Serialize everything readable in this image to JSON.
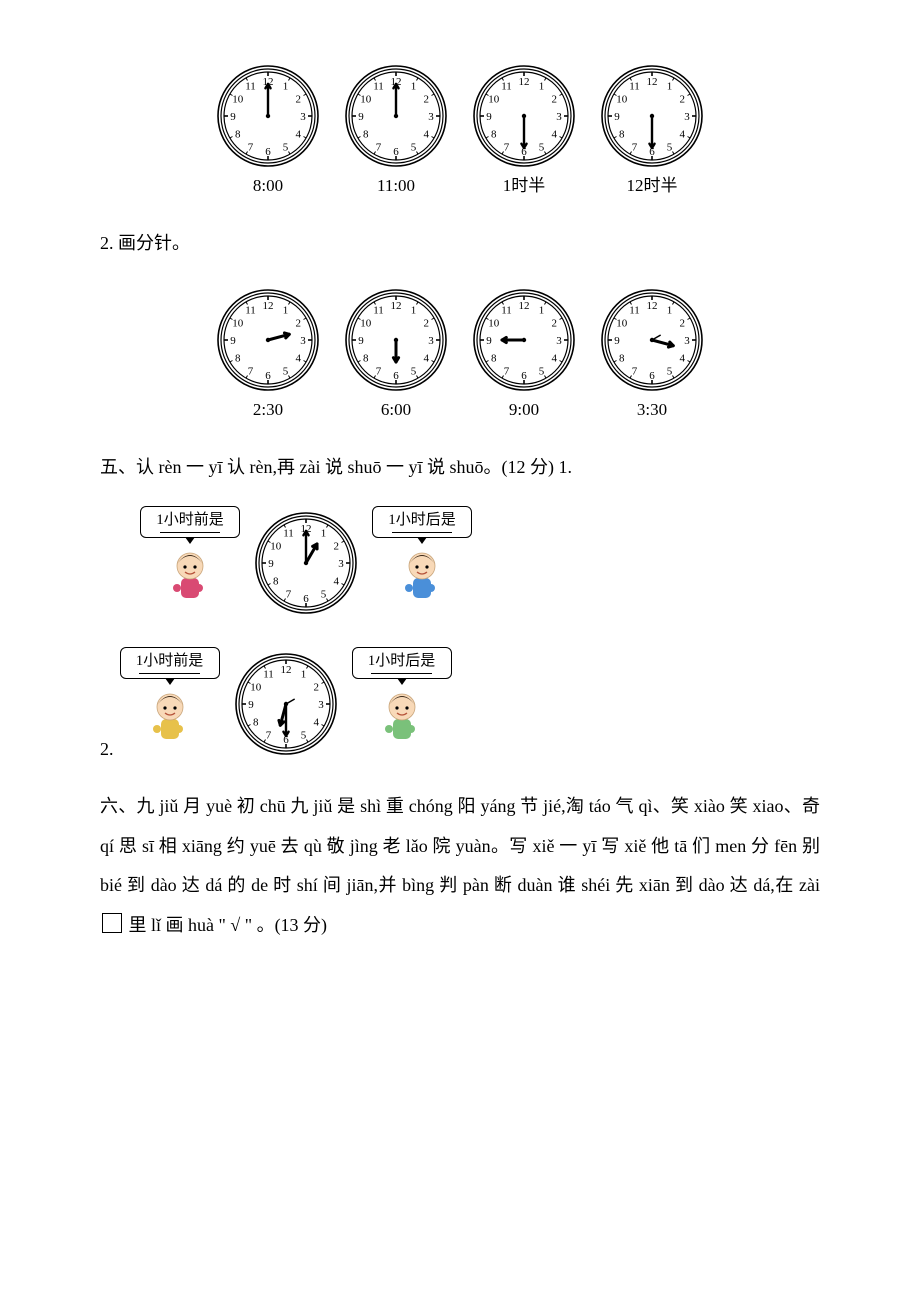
{
  "colors": {
    "text": "#000000",
    "bg": "#ffffff",
    "clock_border": "#000000",
    "clock_face": "#ffffff",
    "hand": "#000000",
    "kid_skin": "#f8d9b8",
    "kid_hair1": "#3b2a1a",
    "kid_hair2": "#2a2a2a",
    "kid_shirt1": "#d94a73",
    "kid_shirt2": "#4a8fd9",
    "kid_shirt3": "#e7c14a",
    "kid_shirt4": "#7ac17a"
  },
  "clock_style": {
    "outer_ring_r": 50,
    "inner_r": 44,
    "number_r": 35,
    "font_size": 11,
    "hour_hand_len": 22,
    "minute_hand_len": 32,
    "hand_width": 2.4,
    "center_dot_r": 2.2
  },
  "row1": {
    "clocks": [
      {
        "label": "8:00",
        "hour_angle": null,
        "minute_angle": 0,
        "hour_fixed_angle": 0
      },
      {
        "label": "11:00",
        "hour_angle": null,
        "minute_angle": 0,
        "hour_fixed_angle": 0
      },
      {
        "label": "1时半",
        "hour_angle": null,
        "minute_angle": 180,
        "hour_fixed_angle": 180
      },
      {
        "label": "12时半",
        "hour_angle": null,
        "minute_angle": 180,
        "hour_fixed_angle": 180
      }
    ]
  },
  "q2_heading": "2. 画分针。",
  "row2": {
    "clocks": [
      {
        "label": "2:30",
        "hour_angle": 75,
        "minute_angle": null,
        "minute_arrow": false
      },
      {
        "label": "6:00",
        "hour_angle": 180,
        "minute_angle": null,
        "minute_arrow": false
      },
      {
        "label": "9:00",
        "hour_angle": 270,
        "minute_angle": null,
        "minute_arrow": false
      },
      {
        "label": "3:30",
        "hour_angle": 105,
        "minute_angle": null,
        "minute_arrow": false,
        "short_arrow_dir": 60
      }
    ]
  },
  "q5_heading": "五、认 rèn 一 yī 认 rèn,再 zài 说 shuō 一 yī 说 shuō。(12 分) 1.",
  "q5_rows": [
    {
      "left_label": "1小时前是",
      "right_label": "1小时后是",
      "clock": {
        "hour_angle": 30,
        "minute_angle": 0
      },
      "left_kid_shirt": "kid_shirt1",
      "right_kid_shirt": "kid_shirt2"
    },
    {
      "left_label": "1小时前是",
      "right_label": "1小时后是",
      "clock": {
        "hour_angle": 195,
        "minute_angle": 180,
        "short_arrow_dir": 60
      },
      "left_kid_shirt": "kid_shirt3",
      "right_kid_shirt": "kid_shirt4"
    }
  ],
  "q5_num2": "2.",
  "q6_text_parts": [
    "六、九 jiǔ 月 yuè 初 chū 九 jiǔ 是 shì 重 chóng 阳 yáng 节 jié,淘 táo 气 qì、笑 xiào 笑 xiao、奇 qí 思 sī 相 xiāng 约 yuē 去 qù 敬 jìng 老 lǎo 院 yuàn。写 xiě 一 yī 写 xiě 他 tā 们 men 分 fēn 别 bié 到 dào 达 dá 的 de 时 shí 间 jiān,并 bìng 判 pàn 断 duàn 谁 shéi 先 xiān 到 dào 达 dá,在 zài ",
    " 里 lǐ 画 huà \" √ \" 。(13 分)"
  ]
}
